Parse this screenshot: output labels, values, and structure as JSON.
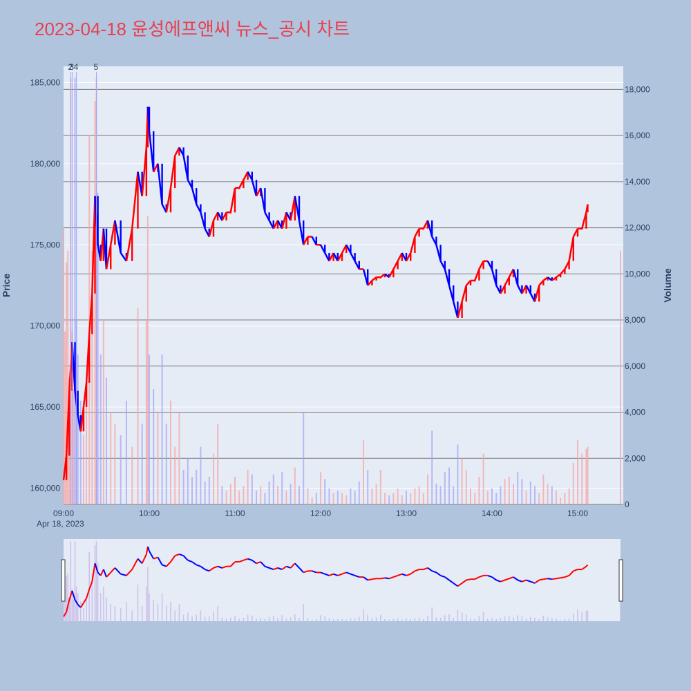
{
  "title": "2023-04-18 윤성에프앤씨 뉴스_공시 차트",
  "colors": {
    "page_bg": "#b0c4de",
    "plot_bg": "#e5ecf6",
    "up": "#ff0000",
    "down": "#0000ff",
    "title": "#e8404f"
  },
  "chart_data": {
    "type": "candlestick",
    "x_label": "",
    "y_label": "Price",
    "y2_label": "Volume",
    "y_range": [
      159000,
      186000
    ],
    "y2_range": [
      0,
      19000
    ],
    "x_range": [
      "09:00",
      "15:30"
    ],
    "x_ticks": [
      "09:00",
      "10:00",
      "11:00",
      "12:00",
      "13:00",
      "14:00",
      "15:00"
    ],
    "x_date_label": "Apr 18, 2023",
    "y_ticks": [
      "160,000",
      "165,000",
      "170,000",
      "175,000",
      "180,000",
      "185,000"
    ],
    "y_tick_values": [
      160000,
      165000,
      170000,
      175000,
      180000,
      185000
    ],
    "y2_ticks": [
      "0",
      "2,000",
      "4,000",
      "6,000",
      "8,000",
      "10,000",
      "12,000",
      "14,000",
      "16,000",
      "18,000"
    ],
    "y2_tick_values": [
      0,
      2000,
      4000,
      6000,
      8000,
      10000,
      12000,
      14000,
      16000,
      18000
    ],
    "news_markers": [
      {
        "label": "2",
        "time": "09:05"
      },
      {
        "label": "3",
        "time": "09:06"
      },
      {
        "label": "4",
        "time": "09:09"
      },
      {
        "label": "5",
        "time": "09:23"
      }
    ],
    "price_path": [
      [
        "09:00",
        160500
      ],
      [
        "09:02",
        162000
      ],
      [
        "09:04",
        166000
      ],
      [
        "09:06",
        169000
      ],
      [
        "09:08",
        166000
      ],
      [
        "09:10",
        164500
      ],
      [
        "09:12",
        163500
      ],
      [
        "09:14",
        165000
      ],
      [
        "09:16",
        166500
      ],
      [
        "09:18",
        169500
      ],
      [
        "09:20",
        172000
      ],
      [
        "09:22",
        178000
      ],
      [
        "09:24",
        175000
      ],
      [
        "09:26",
        174000
      ],
      [
        "09:28",
        176000
      ],
      [
        "09:30",
        173500
      ],
      [
        "09:33",
        175000
      ],
      [
        "09:36",
        176500
      ],
      [
        "09:40",
        174500
      ],
      [
        "09:44",
        174000
      ],
      [
        "09:48",
        176000
      ],
      [
        "09:52",
        179500
      ],
      [
        "09:55",
        178000
      ],
      [
        "09:58",
        181000
      ],
      [
        "09:59",
        183500
      ],
      [
        "10:00",
        182000
      ],
      [
        "10:03",
        179500
      ],
      [
        "10:06",
        180000
      ],
      [
        "10:09",
        177500
      ],
      [
        "10:12",
        177000
      ],
      [
        "10:15",
        178500
      ],
      [
        "10:18",
        180500
      ],
      [
        "10:21",
        181000
      ],
      [
        "10:24",
        180500
      ],
      [
        "10:27",
        179000
      ],
      [
        "10:30",
        178500
      ],
      [
        "10:33",
        177500
      ],
      [
        "10:36",
        177000
      ],
      [
        "10:39",
        176000
      ],
      [
        "10:42",
        175500
      ],
      [
        "10:45",
        176500
      ],
      [
        "10:48",
        177000
      ],
      [
        "10:51",
        176500
      ],
      [
        "10:54",
        177000
      ],
      [
        "10:57",
        177000
      ],
      [
        "11:00",
        178500
      ],
      [
        "11:03",
        178500
      ],
      [
        "11:06",
        179000
      ],
      [
        "11:09",
        179500
      ],
      [
        "11:12",
        179000
      ],
      [
        "11:15",
        178000
      ],
      [
        "11:18",
        178500
      ],
      [
        "11:21",
        177000
      ],
      [
        "11:24",
        176500
      ],
      [
        "11:27",
        176000
      ],
      [
        "11:30",
        176500
      ],
      [
        "11:33",
        176000
      ],
      [
        "11:36",
        177000
      ],
      [
        "11:39",
        176500
      ],
      [
        "11:42",
        178000
      ],
      [
        "11:45",
        176500
      ],
      [
        "11:48",
        175000
      ],
      [
        "11:51",
        175500
      ],
      [
        "11:54",
        175500
      ],
      [
        "11:57",
        175000
      ],
      [
        "12:00",
        175000
      ],
      [
        "12:03",
        174500
      ],
      [
        "12:06",
        174000
      ],
      [
        "12:09",
        174500
      ],
      [
        "12:12",
        174000
      ],
      [
        "12:15",
        174500
      ],
      [
        "12:18",
        175000
      ],
      [
        "12:21",
        174500
      ],
      [
        "12:24",
        174000
      ],
      [
        "12:27",
        173500
      ],
      [
        "12:30",
        173500
      ],
      [
        "12:33",
        172500
      ],
      [
        "12:36",
        172800
      ],
      [
        "12:39",
        173000
      ],
      [
        "12:42",
        173000
      ],
      [
        "12:45",
        173200
      ],
      [
        "12:48",
        173000
      ],
      [
        "12:51",
        173500
      ],
      [
        "12:54",
        174000
      ],
      [
        "12:57",
        174500
      ],
      [
        "13:00",
        174000
      ],
      [
        "13:03",
        174500
      ],
      [
        "13:06",
        175500
      ],
      [
        "13:09",
        176000
      ],
      [
        "13:12",
        176000
      ],
      [
        "13:15",
        176500
      ],
      [
        "13:18",
        175500
      ],
      [
        "13:21",
        175000
      ],
      [
        "13:24",
        174000
      ],
      [
        "13:27",
        173500
      ],
      [
        "13:30",
        172500
      ],
      [
        "13:33",
        171500
      ],
      [
        "13:36",
        170500
      ],
      [
        "13:39",
        171500
      ],
      [
        "13:42",
        172500
      ],
      [
        "13:45",
        172800
      ],
      [
        "13:48",
        172800
      ],
      [
        "13:51",
        173500
      ],
      [
        "13:54",
        174000
      ],
      [
        "13:57",
        174000
      ],
      [
        "14:00",
        173500
      ],
      [
        "14:03",
        172500
      ],
      [
        "14:06",
        172000
      ],
      [
        "14:09",
        172500
      ],
      [
        "14:12",
        173000
      ],
      [
        "14:15",
        173500
      ],
      [
        "14:18",
        172500
      ],
      [
        "14:21",
        172000
      ],
      [
        "14:24",
        172500
      ],
      [
        "14:27",
        172000
      ],
      [
        "14:30",
        171500
      ],
      [
        "14:33",
        172500
      ],
      [
        "14:36",
        172800
      ],
      [
        "14:39",
        173000
      ],
      [
        "14:42",
        172800
      ],
      [
        "14:45",
        173000
      ],
      [
        "14:48",
        173200
      ],
      [
        "14:51",
        173500
      ],
      [
        "14:54",
        174000
      ],
      [
        "14:57",
        175500
      ],
      [
        "15:00",
        176000
      ],
      [
        "15:03",
        176000
      ],
      [
        "15:06",
        177000
      ],
      [
        "15:07",
        177500
      ]
    ],
    "volume_bars": [
      [
        "09:00",
        12000
      ],
      [
        "09:01",
        7500
      ],
      [
        "09:02",
        10500
      ],
      [
        "09:03",
        11000
      ],
      [
        "09:04",
        5500
      ],
      [
        "09:05",
        18500
      ],
      [
        "09:06",
        7500
      ],
      [
        "09:07",
        5000
      ],
      [
        "09:08",
        18500
      ],
      [
        "09:09",
        8000
      ],
      [
        "09:10",
        6500
      ],
      [
        "09:12",
        4500
      ],
      [
        "09:14",
        3000
      ],
      [
        "09:16",
        5500
      ],
      [
        "09:18",
        16000
      ],
      [
        "09:20",
        11000
      ],
      [
        "09:22",
        17500
      ],
      [
        "09:23",
        18500
      ],
      [
        "09:24",
        13500
      ],
      [
        "09:26",
        6500
      ],
      [
        "09:28",
        8000
      ],
      [
        "09:30",
        5500
      ],
      [
        "09:33",
        4000
      ],
      [
        "09:36",
        3500
      ],
      [
        "09:40",
        3000
      ],
      [
        "09:44",
        4500
      ],
      [
        "09:48",
        2500
      ],
      [
        "09:52",
        8500
      ],
      [
        "09:55",
        3500
      ],
      [
        "09:58",
        8000
      ],
      [
        "09:59",
        12500
      ],
      [
        "10:00",
        6500
      ],
      [
        "10:03",
        5000
      ],
      [
        "10:06",
        4000
      ],
      [
        "10:09",
        6500
      ],
      [
        "10:12",
        3500
      ],
      [
        "10:15",
        4500
      ],
      [
        "10:18",
        2500
      ],
      [
        "10:21",
        4000
      ],
      [
        "10:24",
        1500
      ],
      [
        "10:27",
        2000
      ],
      [
        "10:30",
        1200
      ],
      [
        "10:33",
        1500
      ],
      [
        "10:36",
        2500
      ],
      [
        "10:39",
        1000
      ],
      [
        "10:42",
        1200
      ],
      [
        "10:45",
        2200
      ],
      [
        "10:48",
        3500
      ],
      [
        "10:51",
        800
      ],
      [
        "10:54",
        600
      ],
      [
        "10:57",
        900
      ],
      [
        "11:00",
        1200
      ],
      [
        "11:03",
        600
      ],
      [
        "11:06",
        800
      ],
      [
        "11:09",
        1500
      ],
      [
        "11:12",
        1300
      ],
      [
        "11:15",
        600
      ],
      [
        "11:18",
        800
      ],
      [
        "11:21",
        500
      ],
      [
        "11:24",
        1000
      ],
      [
        "11:27",
        1300
      ],
      [
        "11:30",
        800
      ],
      [
        "11:33",
        1400
      ],
      [
        "11:36",
        600
      ],
      [
        "11:39",
        900
      ],
      [
        "11:42",
        1600
      ],
      [
        "11:45",
        800
      ],
      [
        "11:48",
        4000
      ],
      [
        "11:51",
        700
      ],
      [
        "11:54",
        300
      ],
      [
        "11:57",
        500
      ],
      [
        "12:00",
        1400
      ],
      [
        "12:03",
        1100
      ],
      [
        "12:06",
        700
      ],
      [
        "12:09",
        500
      ],
      [
        "12:12",
        600
      ],
      [
        "12:15",
        500
      ],
      [
        "12:18",
        400
      ],
      [
        "12:21",
        700
      ],
      [
        "12:24",
        600
      ],
      [
        "12:27",
        1000
      ],
      [
        "12:30",
        2800
      ],
      [
        "12:33",
        1500
      ],
      [
        "12:36",
        700
      ],
      [
        "12:39",
        900
      ],
      [
        "12:42",
        1500
      ],
      [
        "12:45",
        500
      ],
      [
        "12:48",
        400
      ],
      [
        "12:51",
        500
      ],
      [
        "12:54",
        700
      ],
      [
        "12:57",
        400
      ],
      [
        "13:00",
        600
      ],
      [
        "13:03",
        500
      ],
      [
        "13:06",
        700
      ],
      [
        "13:09",
        800
      ],
      [
        "13:12",
        500
      ],
      [
        "13:15",
        1300
      ],
      [
        "13:18",
        3200
      ],
      [
        "13:21",
        900
      ],
      [
        "13:24",
        800
      ],
      [
        "13:27",
        1400
      ],
      [
        "13:30",
        1600
      ],
      [
        "13:33",
        800
      ],
      [
        "13:36",
        2600
      ],
      [
        "13:39",
        2000
      ],
      [
        "13:42",
        1500
      ],
      [
        "13:45",
        700
      ],
      [
        "13:48",
        500
      ],
      [
        "13:51",
        1200
      ],
      [
        "13:54",
        2200
      ],
      [
        "13:57",
        600
      ],
      [
        "14:00",
        700
      ],
      [
        "14:03",
        500
      ],
      [
        "14:06",
        800
      ],
      [
        "14:09",
        1100
      ],
      [
        "14:12",
        1200
      ],
      [
        "14:15",
        900
      ],
      [
        "14:18",
        1400
      ],
      [
        "14:21",
        1100
      ],
      [
        "14:24",
        600
      ],
      [
        "14:27",
        1000
      ],
      [
        "14:30",
        800
      ],
      [
        "14:33",
        500
      ],
      [
        "14:36",
        1300
      ],
      [
        "14:39",
        900
      ],
      [
        "14:42",
        800
      ],
      [
        "14:45",
        600
      ],
      [
        "14:48",
        300
      ],
      [
        "14:51",
        500
      ],
      [
        "14:54",
        700
      ],
      [
        "14:57",
        1800
      ],
      [
        "15:00",
        2800
      ],
      [
        "15:03",
        2200
      ],
      [
        "15:06",
        2400
      ],
      [
        "15:07",
        2500
      ],
      [
        "15:30",
        11000
      ]
    ]
  }
}
